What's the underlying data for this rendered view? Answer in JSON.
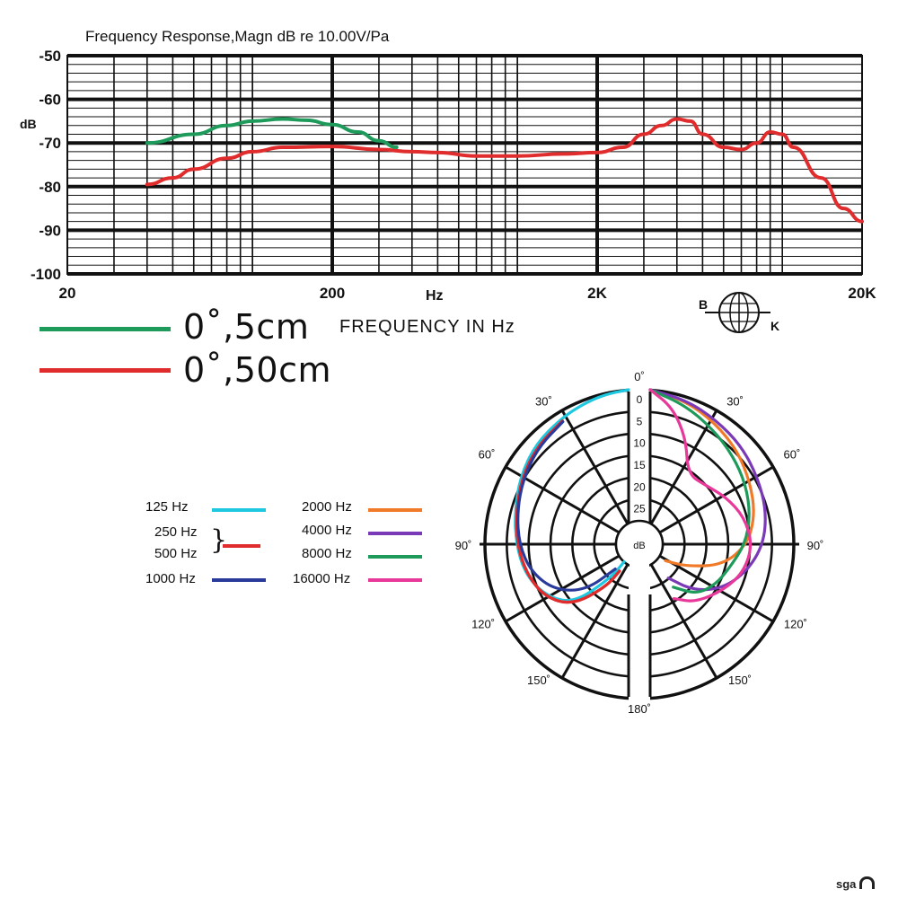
{
  "chart_data": [
    {
      "type": "line",
      "title": "Frequency Response,Magn dB re 10.00V/Pa",
      "ylabel": "dB",
      "xlabel": "FREQUENCY IN Hz",
      "x_scale": "log",
      "xlim": [
        20,
        20000
      ],
      "ylim": [
        -100,
        -50
      ],
      "y_ticks": [
        "-50",
        "-60",
        "-70",
        "-80",
        "-90",
        "-100"
      ],
      "x_ticks": [
        {
          "value": 20,
          "label": "20"
        },
        {
          "value": 200,
          "label": "200"
        },
        {
          "value": 2000,
          "label": "2K"
        },
        {
          "value": 20000,
          "label": "20K"
        }
      ],
      "x_unit_label": "Hz",
      "series": [
        {
          "name": "0˚,5cm",
          "color": "#1e9a5a",
          "points": [
            [
              40,
              -70
            ],
            [
              60,
              -68
            ],
            [
              80,
              -66
            ],
            [
              100,
              -65
            ],
            [
              130,
              -64.5
            ],
            [
              160,
              -64.8
            ],
            [
              200,
              -65.8
            ],
            [
              250,
              -67.5
            ],
            [
              300,
              -69.5
            ],
            [
              350,
              -71
            ]
          ]
        },
        {
          "name": "0˚,50cm",
          "color": "#e02c2c",
          "points": [
            [
              40,
              -79.5
            ],
            [
              50,
              -78
            ],
            [
              60,
              -76
            ],
            [
              80,
              -73.5
            ],
            [
              100,
              -72
            ],
            [
              130,
              -71
            ],
            [
              200,
              -70.8
            ],
            [
              300,
              -71.5
            ],
            [
              400,
              -72
            ],
            [
              500,
              -72.2
            ],
            [
              700,
              -73
            ],
            [
              1000,
              -73
            ],
            [
              1500,
              -72.5
            ],
            [
              2000,
              -72.2
            ],
            [
              2500,
              -71
            ],
            [
              3000,
              -68
            ],
            [
              3500,
              -66
            ],
            [
              4000,
              -64.5
            ],
            [
              4500,
              -65
            ],
            [
              5000,
              -68
            ],
            [
              6000,
              -71
            ],
            [
              7000,
              -71.5
            ],
            [
              8000,
              -70
            ],
            [
              9000,
              -67.5
            ],
            [
              10000,
              -68
            ],
            [
              11000,
              -71
            ],
            [
              14000,
              -78
            ],
            [
              17000,
              -85
            ],
            [
              20000,
              -88
            ]
          ]
        }
      ],
      "brand_mark": {
        "top": "B",
        "bottom": "K"
      }
    },
    {
      "type": "polar",
      "radial_labels": [
        "0",
        "5",
        "10",
        "15",
        "20",
        "25"
      ],
      "radial_unit": "dB",
      "angle_labels": [
        "0˚",
        "30˚",
        "60˚",
        "90˚",
        "120˚",
        "150˚",
        "180˚",
        "30˚",
        "60˚",
        "90˚",
        "120˚",
        "150˚"
      ],
      "series": [
        {
          "name": "125 Hz",
          "color": "#1ec8e0",
          "side": "left",
          "points": [
            [
              0,
              0
            ],
            [
              10,
              0.5
            ],
            [
              20,
              1.2
            ],
            [
              30,
              1.8
            ],
            [
              45,
              2.5
            ],
            [
              60,
              3.8
            ],
            [
              75,
              5.3
            ],
            [
              90,
              6.4
            ],
            [
              105,
              7.5
            ],
            [
              120,
              9.8
            ],
            [
              135,
              13.5
            ],
            [
              150,
              22
            ],
            [
              165,
              26
            ]
          ]
        },
        {
          "name": "250 Hz",
          "color": "#e02c2c",
          "side": "left",
          "points": [
            [
              30,
              2.3
            ],
            [
              45,
              3
            ],
            [
              60,
              4.2
            ],
            [
              75,
              5.6
            ],
            [
              90,
              6.6
            ],
            [
              105,
              7.8
            ],
            [
              120,
              9.5
            ],
            [
              135,
              13
            ],
            [
              150,
              20
            ],
            [
              160,
              24
            ]
          ]
        },
        {
          "name": "500 Hz",
          "color": "#e02c2c",
          "side": "left",
          "points": [
            [
              30,
              2.3
            ],
            [
              45,
              3
            ],
            [
              60,
              4.2
            ],
            [
              75,
              5.6
            ],
            [
              90,
              6.6
            ],
            [
              105,
              7.8
            ],
            [
              120,
              9.5
            ],
            [
              135,
              13
            ],
            [
              150,
              20
            ],
            [
              160,
              24
            ]
          ]
        },
        {
          "name": "1000 Hz",
          "color": "#2a3a9a",
          "side": "left",
          "points": [
            [
              30,
              2.5
            ],
            [
              45,
              3.3
            ],
            [
              60,
              4.5
            ],
            [
              75,
              5.8
            ],
            [
              90,
              7
            ],
            [
              105,
              8.8
            ],
            [
              120,
              12
            ],
            [
              135,
              17
            ],
            [
              150,
              24
            ]
          ]
        },
        {
          "name": "2000 Hz",
          "color": "#f07a28",
          "side": "right",
          "points": [
            [
              0,
              0
            ],
            [
              15,
              1.2
            ],
            [
              30,
              2.8
            ],
            [
              45,
              4.2
            ],
            [
              60,
              5.8
            ],
            [
              75,
              7.2
            ],
            [
              90,
              9.5
            ],
            [
              105,
              14
            ],
            [
              120,
              21
            ],
            [
              135,
              25
            ]
          ]
        },
        {
          "name": "4000 Hz",
          "color": "#7a3ab8",
          "side": "right",
          "points": [
            [
              0,
              0
            ],
            [
              15,
              1
            ],
            [
              30,
              2.2
            ],
            [
              45,
              3
            ],
            [
              60,
              4
            ],
            [
              75,
              4.8
            ],
            [
              90,
              6.2
            ],
            [
              105,
              9
            ],
            [
              120,
              12.5
            ],
            [
              135,
              17
            ],
            [
              150,
              22
            ]
          ]
        },
        {
          "name": "8000 Hz",
          "color": "#1e9a5a",
          "side": "right",
          "points": [
            [
              0,
              0
            ],
            [
              15,
              2
            ],
            [
              30,
              4
            ],
            [
              45,
              5.5
            ],
            [
              60,
              6.8
            ],
            [
              75,
              8.2
            ],
            [
              90,
              10
            ],
            [
              105,
              12.5
            ],
            [
              120,
              14
            ],
            [
              135,
              16
            ],
            [
              150,
              20
            ]
          ]
        },
        {
          "name": "16000 Hz",
          "color": "#e8389a",
          "side": "right",
          "points": [
            [
              0,
              0
            ],
            [
              10,
              3
            ],
            [
              20,
              8
            ],
            [
              30,
              14
            ],
            [
              45,
              13.5
            ],
            [
              60,
              11.5
            ],
            [
              75,
              9.5
            ],
            [
              90,
              8.5
            ],
            [
              105,
              9.5
            ],
            [
              120,
              12
            ],
            [
              140,
              15
            ],
            [
              155,
              18
            ]
          ]
        }
      ]
    }
  ],
  "legend_left": {
    "green_label": "0˚,5cm",
    "red_label": "0˚,50cm"
  },
  "polar_legend": {
    "items": [
      {
        "label": "125 Hz",
        "color": "#1ec8e0"
      },
      {
        "label": "250 Hz",
        "color": "#e02c2c"
      },
      {
        "label": "500 Hz",
        "color": "#e02c2c"
      },
      {
        "label": "1000 Hz",
        "color": "#2a3a9a"
      },
      {
        "label": "2000 Hz",
        "color": "#f07a28"
      },
      {
        "label": "4000 Hz",
        "color": "#7a3ab8"
      },
      {
        "label": "8000 Hz",
        "color": "#1e9a5a"
      },
      {
        "label": "16000 Hz",
        "color": "#e8389a"
      }
    ]
  },
  "footer": {
    "logo": "sga"
  }
}
